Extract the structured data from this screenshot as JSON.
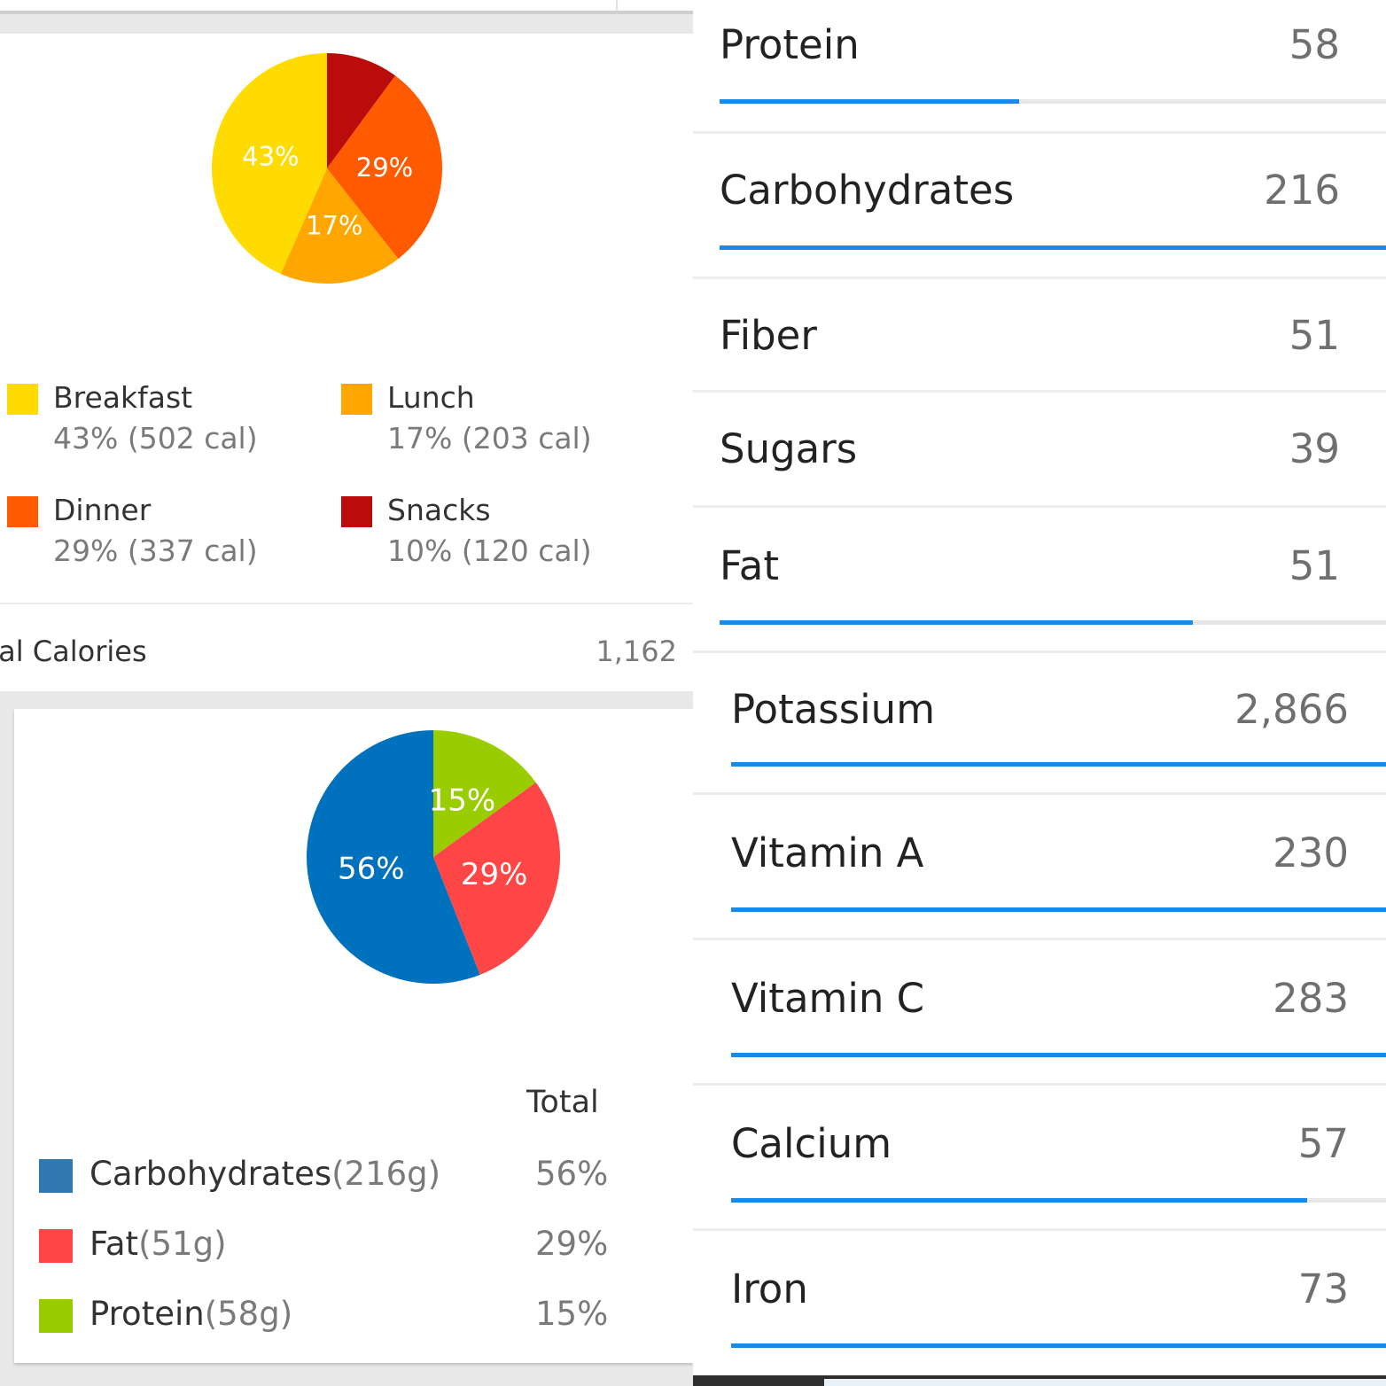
{
  "meal_chart": {
    "chart_data": {
      "type": "pie",
      "categories": [
        "Breakfast",
        "Lunch",
        "Dinner",
        "Snacks"
      ],
      "values": [
        43,
        17,
        29,
        10
      ],
      "slice_labels": [
        "43%",
        "17%",
        "29%",
        ""
      ],
      "colors": [
        "#ffdb00",
        "#ffa600",
        "#ff5a00",
        "#bb0c0c"
      ]
    },
    "legend": [
      {
        "name": "Breakfast",
        "detail": "43% (502 cal)",
        "color": "#ffdb00"
      },
      {
        "name": "Lunch",
        "detail": "17% (203 cal)",
        "color": "#ffa600"
      },
      {
        "name": "Dinner",
        "detail": "29% (337 cal)",
        "color": "#ff5a00"
      },
      {
        "name": "Snacks",
        "detail": "10% (120 cal)",
        "color": "#bb0c0c"
      }
    ],
    "total_label": "otal Calories",
    "total_value": "1,162"
  },
  "macro_chart": {
    "chart_data": {
      "type": "pie",
      "categories": [
        "Carbohydrates",
        "Fat",
        "Protein"
      ],
      "values": [
        56,
        29,
        15
      ],
      "slice_labels": [
        "56%",
        "29%",
        "15%"
      ],
      "colors": [
        "#0072bd",
        "#ff4646",
        "#9acd00"
      ]
    },
    "total_header": "Total",
    "rows": [
      {
        "name": "Carbohydrates",
        "grams": "(216g)",
        "percent": "56%",
        "color": "#2f78b0"
      },
      {
        "name": "Fat",
        "grams": "(51g)",
        "percent": "29%",
        "color": "#ff4646"
      },
      {
        "name": "Protein",
        "grams": "(58g)",
        "percent": "15%",
        "color": "#99cc00"
      }
    ]
  },
  "nutrients": [
    {
      "label": "Protein",
      "value": "58",
      "progress": 0.45,
      "bar": true
    },
    {
      "label": "Carbohydrates",
      "value": "216",
      "progress": 1.0,
      "bar": true
    },
    {
      "label": "Fiber",
      "value": "51",
      "bar": false
    },
    {
      "label": "Sugars",
      "value": "39",
      "bar": false
    },
    {
      "label": "Fat",
      "value": "51",
      "progress": 0.71,
      "bar": true
    },
    {
      "label": "Potassium",
      "value": "2,866",
      "progress": 1.0,
      "bar": true
    },
    {
      "label": "Vitamin A",
      "value": "230",
      "progress": 1.0,
      "bar": true
    },
    {
      "label": "Vitamin C",
      "value": "283",
      "progress": 1.0,
      "bar": true
    },
    {
      "label": "Calcium",
      "value": "57",
      "progress": 0.88,
      "bar": true
    },
    {
      "label": "Iron",
      "value": "73",
      "progress": 1.0,
      "bar": true
    }
  ],
  "accent_color": "#1e88e5"
}
